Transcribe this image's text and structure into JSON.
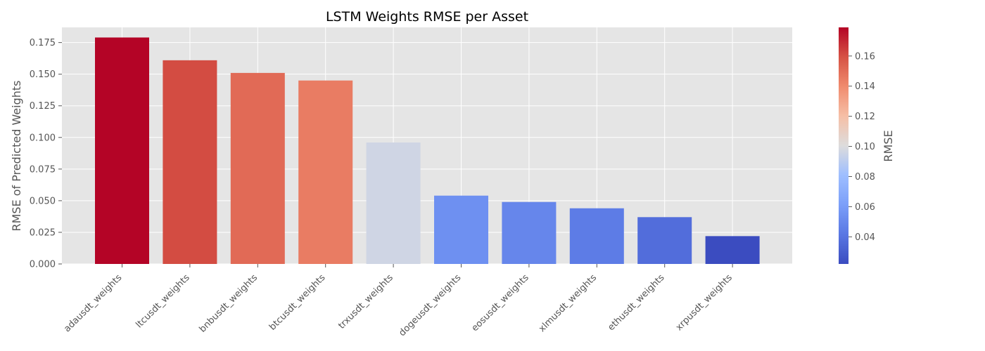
{
  "chart_data": {
    "type": "bar",
    "title": "LSTM Weights RMSE per Asset",
    "xlabel": "",
    "ylabel": "RMSE of Predicted Weights",
    "categories": [
      "adausdt_weights",
      "ltcusdt_weights",
      "bnbusdt_weights",
      "btcusdt_weights",
      "trxusdt_weights",
      "dogeusdt_weights",
      "eosusdt_weights",
      "xlmusdt_weights",
      "ethusdt_weights",
      "xrpusdt_weights"
    ],
    "values": [
      0.179,
      0.161,
      0.151,
      0.145,
      0.096,
      0.054,
      0.049,
      0.044,
      0.037,
      0.022
    ],
    "ylim": [
      0,
      0.187
    ],
    "yticks": [
      "0.000",
      "0.025",
      "0.050",
      "0.075",
      "0.100",
      "0.125",
      "0.150",
      "0.175"
    ],
    "grid": true,
    "colormap": "coolwarm",
    "colorbar": {
      "label": "RMSE",
      "range": [
        0.022,
        0.179
      ],
      "ticks": [
        "0.04",
        "0.06",
        "0.08",
        "0.10",
        "0.12",
        "0.14",
        "0.16"
      ]
    },
    "colors": {
      "plot_background": "#e5e5e5",
      "grid": "#ffffff",
      "text": "#555555"
    }
  }
}
